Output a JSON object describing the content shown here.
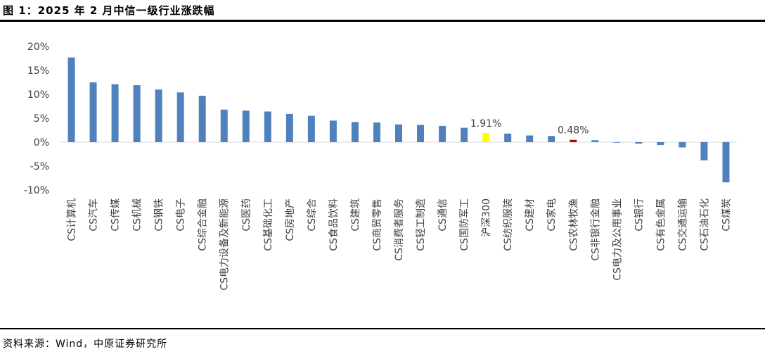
{
  "header": {
    "title": "图 1：2025 年 2 月中信一级行业涨跌幅"
  },
  "footer": {
    "source": "资料来源：Wind，中原证券研究所"
  },
  "chart_data": {
    "type": "bar",
    "title": "",
    "xlabel": "",
    "ylabel": "",
    "ylim": [
      -10,
      20
    ],
    "yticks": [
      "20%",
      "15%",
      "10%",
      "5%",
      "0%",
      "-5%",
      "-10%"
    ],
    "ytick_values": [
      20,
      15,
      10,
      5,
      0,
      -5,
      -10
    ],
    "grid": false,
    "legend": "none",
    "categories": [
      "CS计算机",
      "CS汽车",
      "CS传媒",
      "CS机械",
      "CS钢铁",
      "CS电子",
      "CS综合金融",
      "CS电力设备及新能源",
      "CS医药",
      "CS基础化工",
      "CS房地产",
      "CS综合",
      "CS食品饮料",
      "CS建筑",
      "CS商贸零售",
      "CS消费者服务",
      "CS轻工制造",
      "CS通信",
      "CS国防军工",
      "沪深300",
      "CS纺织服装",
      "CS建材",
      "CS家电",
      "CS农林牧渔",
      "CS非银行金融",
      "CS电力及公用事业",
      "CS银行",
      "CS有色金属",
      "CS交通运输",
      "CS石油石化",
      "CS煤炭"
    ],
    "values": [
      17.7,
      12.5,
      12.1,
      11.9,
      11.0,
      10.4,
      9.7,
      6.8,
      6.6,
      6.4,
      5.9,
      5.5,
      4.5,
      4.2,
      4.1,
      3.7,
      3.6,
      3.4,
      3.0,
      1.91,
      1.8,
      1.4,
      1.3,
      0.48,
      0.4,
      -0.1,
      -0.3,
      -0.6,
      -1.1,
      -3.8,
      -8.4
    ],
    "bar_colors": [
      "#4f81bd",
      "#4f81bd",
      "#4f81bd",
      "#4f81bd",
      "#4f81bd",
      "#4f81bd",
      "#4f81bd",
      "#4f81bd",
      "#4f81bd",
      "#4f81bd",
      "#4f81bd",
      "#4f81bd",
      "#4f81bd",
      "#4f81bd",
      "#4f81bd",
      "#4f81bd",
      "#4f81bd",
      "#4f81bd",
      "#4f81bd",
      "#ffff00",
      "#4f81bd",
      "#4f81bd",
      "#4f81bd",
      "#c00000",
      "#4f81bd",
      "#4f81bd",
      "#4f81bd",
      "#4f81bd",
      "#4f81bd",
      "#4f81bd",
      "#4f81bd"
    ],
    "data_labels": [
      {
        "index": 19,
        "text": "1.91%"
      },
      {
        "index": 23,
        "text": "0.48%"
      }
    ]
  }
}
